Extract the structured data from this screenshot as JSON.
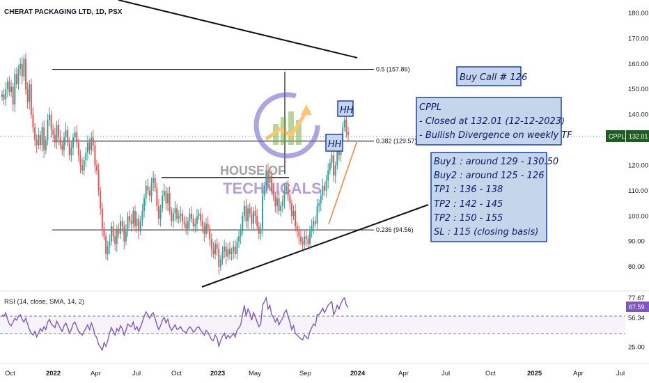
{
  "header": {
    "title": "CHERAT PACKAGING LTD, 1D, PSX"
  },
  "rsi_header": "RSI (14, close, SMA, 14, 2)",
  "colors": {
    "up": "#26a69a",
    "down": "#ef5350",
    "rsi": "#7e57c2",
    "ticker_badge": "#1b5e20",
    "rsi_badge": "#7e57c2",
    "note_fill": "#c5d5ea",
    "note_border": "#1a3ec4"
  },
  "chart_data": [
    {
      "type": "candlestick",
      "symbol": "CPPL",
      "last_price": "132.01",
      "y_ticks": [
        "180.00",
        "170.00",
        "160.00",
        "150.00",
        "140.00",
        "130.00",
        "120.00",
        "110.00",
        "100.00",
        "90.00",
        "80.00"
      ],
      "ylim": [
        74,
        183
      ],
      "x_ticks": [
        "Oct",
        "2022",
        "Apr",
        "Jul",
        "Oct",
        "2023",
        "May",
        "Sep",
        "2024",
        "Apr",
        "Jul",
        "Oct",
        "2025",
        "Apr",
        "Jul"
      ],
      "closes": [
        148,
        146,
        150,
        153,
        149,
        151,
        144,
        156,
        152,
        158,
        160,
        155,
        162,
        150,
        145,
        152,
        140,
        135,
        130,
        128,
        132,
        128,
        135,
        126,
        130,
        138,
        140,
        134,
        132,
        129,
        136,
        131,
        128,
        126,
        131,
        134,
        129,
        124,
        127,
        131,
        133,
        129,
        124,
        120,
        118,
        122,
        125,
        129,
        126,
        131,
        128,
        120,
        118,
        110,
        103,
        95,
        92,
        85,
        88,
        90,
        96,
        92,
        89,
        95,
        93,
        98,
        96,
        90,
        94,
        100,
        98,
        97,
        102,
        96,
        99,
        94,
        98,
        102,
        107,
        112,
        110,
        108,
        113,
        115,
        111,
        104,
        99,
        103,
        108,
        110,
        105,
        109,
        102,
        98,
        101,
        103,
        99,
        100,
        101,
        98,
        97,
        95,
        98,
        101,
        99,
        96,
        97,
        100,
        101,
        98,
        96,
        93,
        97,
        95,
        91,
        87,
        85,
        89,
        87,
        80,
        83,
        86,
        88,
        84,
        87,
        85,
        86,
        88,
        85,
        90,
        92,
        94,
        100,
        104,
        98,
        103,
        101,
        97,
        102,
        100,
        96,
        93,
        95,
        108,
        112,
        118,
        113,
        116,
        110,
        108,
        104,
        107,
        102,
        104,
        106,
        110,
        112,
        108,
        105,
        100,
        102,
        96,
        94,
        92,
        90,
        89,
        92,
        91,
        89,
        94,
        96,
        98,
        97,
        104,
        105,
        108,
        112,
        110,
        114,
        118,
        121,
        124,
        116,
        120,
        126,
        124,
        130,
        135,
        138,
        133,
        132
      ],
      "fib_levels": [
        {
          "label": "0.5 (157.86)",
          "price": 157.86
        },
        {
          "label": "0.382 (129.57)",
          "price": 129.57
        },
        {
          "label": "0.236 (94.56)",
          "price": 94.56
        }
      ],
      "patterns": [
        "HH",
        "HH"
      ]
    },
    {
      "type": "line",
      "title": "RSI (14, close, SMA, 14, 2)",
      "y_ticks": [
        "77.67",
        "56.34",
        "25.00"
      ],
      "last_value": "67.59",
      "values": [
        60,
        58,
        62,
        55,
        50,
        48,
        52,
        56,
        54,
        58,
        60,
        55,
        52,
        56,
        50,
        44,
        40,
        38,
        42,
        36,
        40,
        45,
        42,
        47,
        44,
        52,
        55,
        50,
        48,
        46,
        53,
        49,
        45,
        42,
        48,
        51,
        46,
        40,
        44,
        50,
        52,
        47,
        42,
        40,
        38,
        42,
        45,
        49,
        44,
        51,
        46,
        38,
        35,
        28,
        25,
        22,
        30,
        26,
        32,
        40,
        46,
        42,
        38,
        45,
        42,
        48,
        45,
        38,
        43,
        50,
        48,
        47,
        52,
        44,
        47,
        42,
        47,
        52,
        58,
        63,
        60,
        56,
        60,
        62,
        56,
        49,
        44,
        48,
        54,
        57,
        51,
        55,
        47,
        43,
        46,
        49,
        44,
        45,
        47,
        43,
        42,
        40,
        44,
        47,
        45,
        41,
        43,
        46,
        47,
        43,
        41,
        38,
        43,
        41,
        37,
        33,
        32,
        38,
        35,
        26,
        32,
        37,
        40,
        34,
        38,
        35,
        37,
        40,
        36,
        43,
        46,
        49,
        60,
        70,
        58,
        66,
        62,
        54,
        62,
        58,
        52,
        47,
        50,
        70,
        74,
        78,
        66,
        70,
        60,
        57,
        52,
        56,
        49,
        53,
        56,
        62,
        65,
        58,
        52,
        44,
        48,
        40,
        38,
        36,
        34,
        33,
        38,
        36,
        34,
        42,
        46,
        50,
        48,
        60,
        60,
        63,
        67,
        62,
        66,
        70,
        72,
        74,
        60,
        64,
        70,
        66,
        72,
        76,
        78,
        70,
        67.59
      ]
    }
  ],
  "annotations": {
    "buy_call": "Buy Call # 126",
    "info_lines": [
      "CPPL",
      "- Closed at 132.01 (12-12-2023)",
      "- Bullish Divergence on weekly TF"
    ],
    "levels_lines": [
      "Buy1 : around 129 - 130.50",
      "Buy2 : around 125 - 126",
      "TP1 : 136 - 138",
      "TP2 : 142 - 145",
      "TP2 : 150 - 155",
      "SL : 115 (closing basis)"
    ],
    "hh_label": "HH",
    "logo_line1": "HOUSE OF",
    "logo_line2": "TECHNICALS"
  }
}
